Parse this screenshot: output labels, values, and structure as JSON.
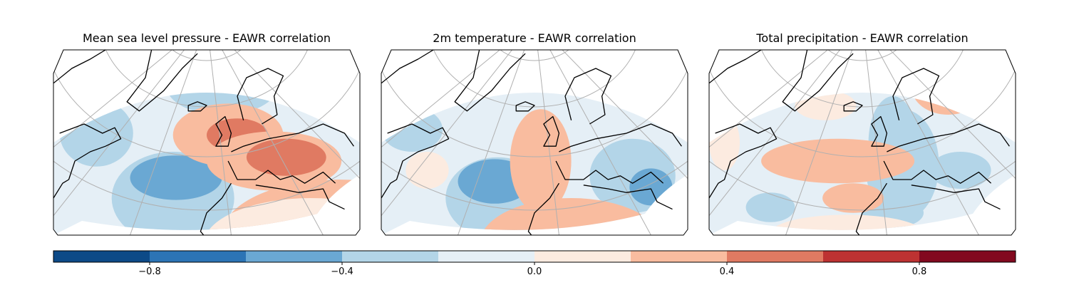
{
  "panels": [
    {
      "title": "Mean sea level pressure - EAWR correlation",
      "variable": "msl"
    },
    {
      "title": "2m temperature - EAWR correlation",
      "variable": "t2m"
    },
    {
      "title": "Total precipitation - EAWR correlation",
      "variable": "tp"
    }
  ],
  "colorbar": {
    "colormap": "RdBu_r",
    "vmin": -1.0,
    "vmax": 1.0,
    "levels": [
      -1.0,
      -0.8,
      -0.6,
      -0.4,
      -0.2,
      0.0,
      0.2,
      0.4,
      0.6,
      0.8,
      1.0
    ],
    "colors": [
      "#0d4a87",
      "#2c74b5",
      "#6aa8d3",
      "#b3d5e8",
      "#e5eff6",
      "#fcebe0",
      "#f9bc9f",
      "#e07a62",
      "#bd3232",
      "#82091f"
    ],
    "tick_values": [
      -0.8,
      -0.4,
      0.0,
      0.4,
      0.8
    ],
    "tick_labels": [
      "−0.8",
      "−0.4",
      "0.0",
      "0.4",
      "0.8"
    ]
  },
  "map": {
    "ocean_color": "#e5eff6",
    "gridline_color": "#b0b0b0",
    "coastline_color": "#000000"
  }
}
